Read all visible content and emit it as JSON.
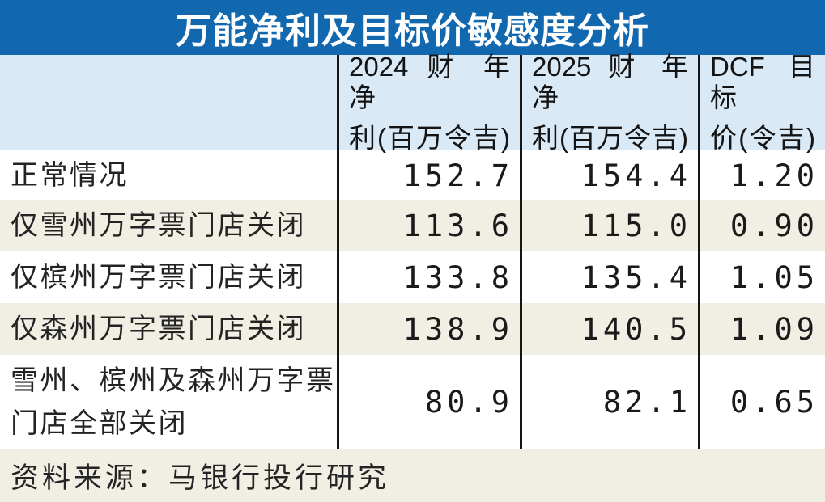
{
  "title": "万能净利及目标价敏感度分析",
  "colors": {
    "title_bar_bg": "#1268af",
    "title_text": "#ffffff",
    "header_bg": "#d9e9f6",
    "row_bg": "#ffffff",
    "row_alt_bg": "#f1eee4",
    "grid_line": "#161616",
    "text": "#1c1c1c"
  },
  "table": {
    "headers": [
      {
        "line1": "2024 财 年 净",
        "line2": "利(百万令吉)"
      },
      {
        "line1": "2025 财 年 净",
        "line2": "利(百万令吉)"
      },
      {
        "line1": "DCF目标",
        "line2": "价(令吉)"
      }
    ],
    "rows": [
      {
        "label_lines": [
          "正常情况"
        ],
        "fy2024": "152.7",
        "fy2025": "154.4",
        "dcf": "1.20"
      },
      {
        "label_lines": [
          "仅雪州万字票门店关闭"
        ],
        "fy2024": "113.6",
        "fy2025": "115.0",
        "dcf": "0.90"
      },
      {
        "label_lines": [
          "仅槟州万字票门店关闭"
        ],
        "fy2024": "133.8",
        "fy2025": "135.4",
        "dcf": "1.05"
      },
      {
        "label_lines": [
          "仅森州万字票门店关闭"
        ],
        "fy2024": "138.9",
        "fy2025": "140.5",
        "dcf": "1.09"
      },
      {
        "label_lines": [
          "雪州、槟州及森州万字票",
          "门店全部关闭"
        ],
        "fy2024": "80.9",
        "fy2025": "82.1",
        "dcf": "0.65"
      }
    ]
  },
  "footer": {
    "source": "资料来源：马银行投行研究"
  },
  "chart_data": {
    "type": "table",
    "title": "万能净利及目标价敏感度分析",
    "columns": [
      "2024财年净利(百万令吉)",
      "2025财年净利(百万令吉)",
      "DCF目标价(令吉)"
    ],
    "rows": [
      {
        "scenario": "正常情况",
        "fy2024_net_profit_rm_m": 152.7,
        "fy2025_net_profit_rm_m": 154.4,
        "dcf_target_price_rm": 1.2
      },
      {
        "scenario": "仅雪州万字票门店关闭",
        "fy2024_net_profit_rm_m": 113.6,
        "fy2025_net_profit_rm_m": 115.0,
        "dcf_target_price_rm": 0.9
      },
      {
        "scenario": "仅槟州万字票门店关闭",
        "fy2024_net_profit_rm_m": 133.8,
        "fy2025_net_profit_rm_m": 135.4,
        "dcf_target_price_rm": 1.05
      },
      {
        "scenario": "仅森州万字票门店关闭",
        "fy2024_net_profit_rm_m": 138.9,
        "fy2025_net_profit_rm_m": 140.5,
        "dcf_target_price_rm": 1.09
      },
      {
        "scenario": "雪州、槟州及森州万字票门店全部关闭",
        "fy2024_net_profit_rm_m": 80.9,
        "fy2025_net_profit_rm_m": 82.1,
        "dcf_target_price_rm": 0.65
      }
    ],
    "source": "资料来源：马银行投行研究",
    "layout": {
      "grid": "vertical-column-separators-only",
      "row_striping": true
    }
  }
}
